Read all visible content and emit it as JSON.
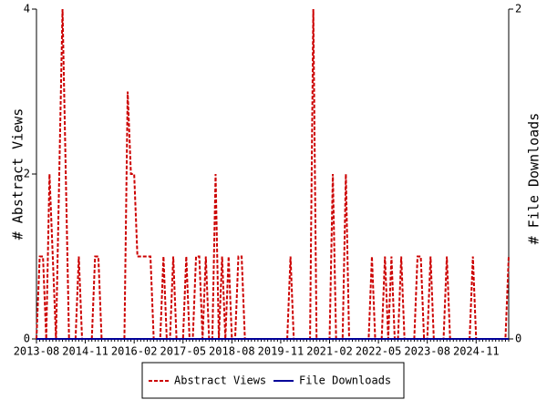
{
  "chart_data": {
    "type": "line",
    "y_label": "# Abstract Views",
    "y2_label": "# File Downloads",
    "categories": [
      "2013-08",
      null,
      null,
      null,
      null,
      null,
      null,
      null,
      null,
      null,
      null,
      null,
      null,
      null,
      null,
      "2014-11",
      null,
      null,
      null,
      null,
      null,
      null,
      null,
      null,
      null,
      null,
      null,
      null,
      null,
      null,
      "2016-02",
      null,
      null,
      null,
      null,
      null,
      null,
      null,
      null,
      null,
      null,
      null,
      null,
      null,
      null,
      "2017-05",
      null,
      null,
      null,
      null,
      null,
      null,
      null,
      null,
      null,
      null,
      null,
      null,
      null,
      null,
      "2018-08",
      null,
      null,
      null,
      null,
      null,
      null,
      null,
      null,
      null,
      null,
      null,
      null,
      null,
      null,
      "2019-11",
      null,
      null,
      null,
      null,
      null,
      null,
      null,
      null,
      null,
      null,
      null,
      null,
      null,
      null,
      "2021-02",
      null,
      null,
      null,
      null,
      null,
      null,
      null,
      null,
      null,
      null,
      null,
      null,
      null,
      null,
      "2022-05",
      null,
      null,
      null,
      null,
      null,
      null,
      null,
      null,
      null,
      null,
      null,
      null,
      null,
      null,
      "2023-08",
      null,
      null,
      null,
      null,
      null,
      null,
      null,
      null,
      null,
      null,
      null,
      null,
      null,
      null,
      "2024-11",
      null,
      null,
      null,
      null,
      null,
      null,
      null,
      null,
      null,
      null
    ],
    "series": [
      {
        "name": "Abstract Views",
        "color": "#cc0000",
        "dash": true,
        "values": [
          0,
          1,
          1,
          0,
          2,
          1,
          0,
          2,
          4,
          2,
          0,
          0,
          0,
          1,
          0,
          0,
          0,
          0,
          1,
          1,
          0,
          0,
          0,
          0,
          0,
          0,
          0,
          0,
          3,
          2,
          2,
          1,
          1,
          1,
          1,
          1,
          0,
          0,
          0,
          1,
          0,
          0,
          1,
          0,
          0,
          0,
          1,
          0,
          0,
          1,
          1,
          0,
          1,
          0,
          0,
          2,
          0,
          1,
          0,
          1,
          0,
          0,
          1,
          1,
          0,
          0,
          0,
          0,
          0,
          0,
          0,
          0,
          0,
          0,
          0,
          0,
          0,
          0,
          1,
          0,
          0,
          0,
          0,
          0,
          0,
          4,
          0,
          0,
          0,
          0,
          0,
          2,
          0,
          0,
          0,
          2,
          0,
          0,
          0,
          0,
          0,
          0,
          0,
          1,
          0,
          0,
          0,
          1,
          0,
          1,
          0,
          0,
          1,
          0,
          0,
          0,
          0,
          1,
          1,
          0,
          0,
          1,
          0,
          0,
          0,
          0,
          1,
          0,
          0,
          0,
          0,
          0,
          0,
          0,
          1,
          0,
          0,
          0,
          0,
          0,
          0,
          0,
          0,
          0,
          0,
          1
        ]
      },
      {
        "name": "File Downloads",
        "color": "#000099",
        "dash": false,
        "axis": "y2",
        "values": [
          0,
          0,
          0,
          0,
          0,
          0,
          0,
          0,
          0,
          0,
          0,
          0,
          0,
          0,
          0,
          0,
          0,
          0,
          0,
          0,
          0,
          0,
          0,
          0,
          0,
          0,
          0,
          0,
          0,
          0,
          0,
          0,
          0,
          0,
          0,
          0,
          0,
          0,
          0,
          0,
          0,
          0,
          0,
          0,
          0,
          0,
          0,
          0,
          0,
          0,
          0,
          0,
          0,
          0,
          0,
          0,
          0,
          0,
          0,
          0,
          0,
          0,
          0,
          0,
          0,
          0,
          0,
          0,
          0,
          0,
          0,
          0,
          0,
          0,
          0,
          0,
          0,
          0,
          0,
          0,
          0,
          0,
          0,
          0,
          0,
          0,
          0,
          0,
          0,
          0,
          0,
          0,
          0,
          0,
          0,
          0,
          0,
          0,
          0,
          0,
          0,
          0,
          0,
          0,
          0,
          0,
          0,
          0,
          0,
          0,
          0,
          0,
          0,
          0,
          0,
          0,
          0,
          0,
          0,
          0,
          0,
          0,
          0,
          0,
          0,
          0,
          0,
          0,
          0,
          0,
          0,
          0,
          0,
          0,
          0,
          0,
          0,
          0,
          0,
          0,
          0,
          0,
          0,
          0,
          0,
          0
        ]
      }
    ],
    "ylim": [
      0,
      4
    ],
    "yticks": [
      0,
      2,
      4
    ],
    "y2lim": [
      0,
      2
    ],
    "y2ticks": [
      0,
      2
    ],
    "legend": "bottom"
  }
}
